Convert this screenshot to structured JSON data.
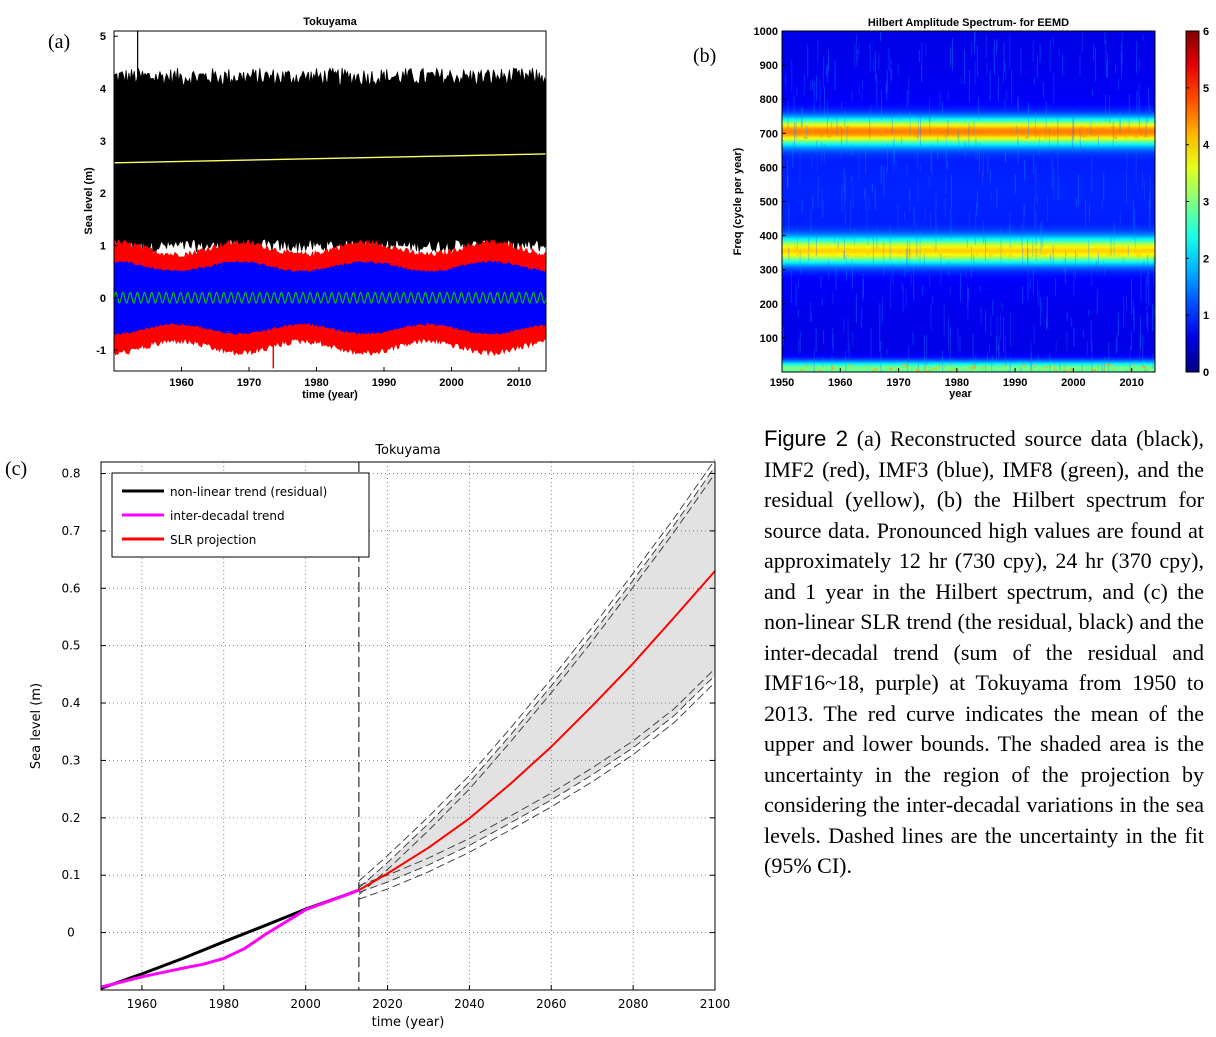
{
  "panels": {
    "a": {
      "label": "(a)",
      "chart_data": {
        "type": "line",
        "title": "Tokuyama",
        "xlabel": "time (year)",
        "ylabel": "Sea level (m)",
        "xlim": [
          1950,
          2014
        ],
        "ylim": [
          -1.4,
          5.1
        ],
        "xticks": [
          1960,
          1970,
          1980,
          1990,
          2000,
          2010
        ],
        "yticks": [
          -1,
          0,
          1,
          2,
          3,
          4,
          5
        ],
        "series": [
          {
            "color": "#000000",
            "lower": 1.05,
            "upper": 4.15,
            "spike_max": 5.1
          },
          {
            "color": "#ff0000",
            "lower": -0.95,
            "upper": 0.95,
            "modulation_period_years": 18.6
          },
          {
            "color": "#0000ff",
            "lower": -0.6,
            "upper": 0.6,
            "modulation_period_years": 18.6
          },
          {
            "color": "#00cc00",
            "amplitude": 0.1,
            "oscillations": 60
          },
          {
            "color": "#ffff66",
            "x": [
              1950,
              2014
            ],
            "y": [
              2.58,
              2.75
            ]
          }
        ],
        "colors": {
          "black": "#000000",
          "red": "#ff0000",
          "blue": "#0000ff",
          "green": "#00cc00",
          "yellow": "#ffff66"
        }
      }
    },
    "b": {
      "label": "(b)",
      "chart_data": {
        "type": "heatmap",
        "title": "Hilbert Amplitude Spectrum- for EEMD",
        "xlabel": "year",
        "ylabel": "Freq (cycle per year)",
        "xlim": [
          1950,
          2014
        ],
        "ylim": [
          0,
          1000
        ],
        "xticks": [
          1950,
          1960,
          1970,
          1980,
          1990,
          2000,
          2010
        ],
        "yticks": [
          100,
          200,
          300,
          400,
          500,
          600,
          700,
          800,
          900,
          1000
        ],
        "colorbar_ticks": [
          0,
          1,
          2,
          3,
          4,
          5,
          6
        ],
        "colorbar_range": [
          0,
          6
        ],
        "colormap": "jet",
        "bands": [
          {
            "center_cpy": 705,
            "peak_value": 4.3
          },
          {
            "center_cpy": 355,
            "peak_value": 3.8
          },
          {
            "center_cpy": 10,
            "peak_value": 3.0
          }
        ],
        "background_value": 0.6
      }
    },
    "c": {
      "label": "(c)",
      "chart_data": {
        "type": "line",
        "title": "Tokuyama",
        "xlabel": "time (year)",
        "ylabel": "Sea level (m)",
        "xlim": [
          1950,
          2100
        ],
        "ylim": [
          -0.1,
          0.82
        ],
        "xticks": [
          1960,
          1980,
          2000,
          2020,
          2040,
          2060,
          2080,
          2100
        ],
        "yticks": [
          0,
          0.1,
          0.2,
          0.3,
          0.4,
          0.5,
          0.6,
          0.7,
          0.8
        ],
        "grid": true,
        "legend": "top-left",
        "vline_x": 2013,
        "series": [
          {
            "name": "non-linear trend (residual)",
            "color": "#000000",
            "x": [
              1950,
              1960,
              1970,
              1980,
              1990,
              2000,
              2010,
              2013
            ],
            "y": [
              -0.097,
              -0.072,
              -0.045,
              -0.016,
              0.012,
              0.041,
              0.066,
              0.074
            ]
          },
          {
            "name": "inter-decadal trend",
            "color": "#ff00ff",
            "x": [
              1950,
              1960,
              1970,
              1975,
              1980,
              1985,
              1990,
              2000,
              2010,
              2013
            ],
            "y": [
              -0.095,
              -0.077,
              -0.062,
              -0.055,
              -0.045,
              -0.028,
              -0.004,
              0.04,
              0.066,
              0.074
            ]
          },
          {
            "name": "SLR projection",
            "color": "#ff0000",
            "x": [
              2013,
              2020,
              2030,
              2040,
              2050,
              2060,
              2070,
              2080,
              2090,
              2100
            ],
            "y": [
              0.074,
              0.103,
              0.148,
              0.199,
              0.259,
              0.324,
              0.395,
              0.469,
              0.549,
              0.63
            ]
          }
        ],
        "uncertainty_band": {
          "color": "#e2e2e2",
          "x": [
            2013,
            2020,
            2030,
            2040,
            2050,
            2060,
            2070,
            2080,
            2090,
            2100
          ],
          "upper": [
            0.078,
            0.122,
            0.19,
            0.262,
            0.344,
            0.43,
            0.52,
            0.614,
            0.71,
            0.812
          ],
          "lower": [
            0.07,
            0.088,
            0.118,
            0.152,
            0.191,
            0.231,
            0.275,
            0.322,
            0.378,
            0.448
          ]
        }
      }
    }
  },
  "caption": {
    "lead": "Figure 2",
    "text": " (a) Reconstructed source data (black), IMF2 (red), IMF3 (blue), IMF8 (green), and the residual (yellow), (b) the Hilbert spectrum for source data. Pronounced high values are found at approximately 12 hr (730 cpy), 24 hr (370 cpy), and 1 year in the Hilbert spectrum, and (c) the non-linear SLR trend (the residual, black) and the inter-decadal trend (sum of the residual and IMF16~18, purple) at Tokuyama from 1950 to 2013. The red curve indicates the mean of the upper and lower bounds. The shaded area is the uncertainty in the region of the projection by considering the inter-decadal variations in the sea levels. Dashed lines are the uncertainty in the fit (95% CI)."
  }
}
